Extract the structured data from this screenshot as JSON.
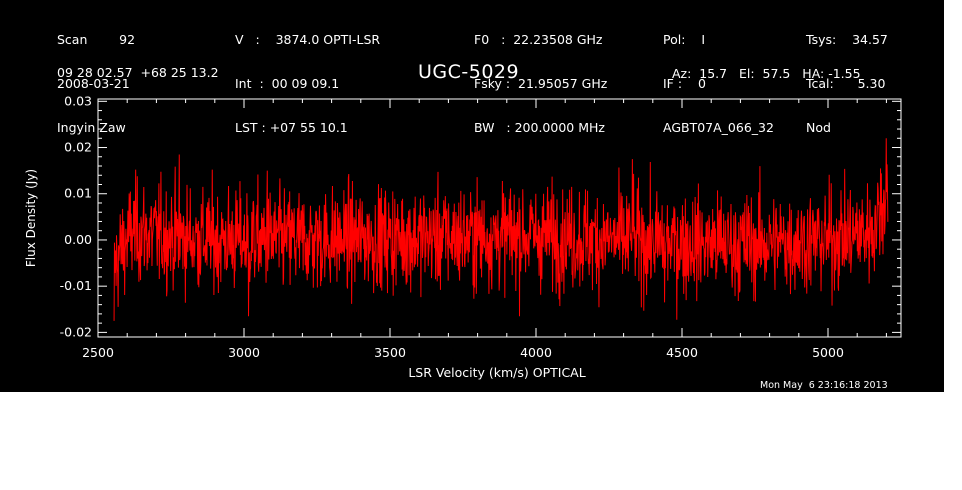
{
  "header": {
    "col1": [
      "Scan        92",
      "2008-03-21",
      "Ingyin Zaw"
    ],
    "col2": [
      "V   :    3874.0 OPTI-LSR",
      "Int  :  00 09 09.1",
      "LST : +07 55 10.1"
    ],
    "col3": [
      "F0   :  22.23508 GHz",
      "Fsky :  21.95057 GHz",
      "BW   : 200.0000 MHz"
    ],
    "col4": [
      "Pol:    I",
      "IF :    0",
      "AGBT07A_066_32"
    ],
    "col5": [
      "Tsys:    34.57",
      "Tcal:      5.30",
      "Nod"
    ]
  },
  "position": "09 28 02.57  +68 25 13.2",
  "source": "UGC-5029",
  "azel": "Az:  15.7   El:  57.5   HA: -1.55",
  "timestamp": "Mon May  6 23:16:18 2013",
  "colors": {
    "background": "#000000",
    "axes": "#ffffff",
    "trace": "#ff0000"
  },
  "chart_data": {
    "type": "line",
    "title": "UGC-5029",
    "xlabel": "LSR Velocity (km/s) OPTICAL",
    "ylabel": "Flux Density (Jy)",
    "xlim": [
      2500,
      5250
    ],
    "ylim": [
      -0.021,
      0.0305
    ],
    "xticks": [
      2500,
      3000,
      3500,
      4000,
      4500,
      5000
    ],
    "xtick_labels": [
      "2500",
      "3000",
      "3500",
      "4000",
      "4500",
      "5000"
    ],
    "yticks": [
      -0.02,
      -0.01,
      0.0,
      0.01,
      0.02,
      0.03
    ],
    "ytick_labels": [
      "-0.02",
      "-0.01",
      "0.00",
      "0.01",
      "0.02",
      "0.03"
    ],
    "grid": false,
    "series": [
      {
        "color": "#ff0000",
        "x_range": [
          2555,
          5205
        ],
        "n_channels": 1900,
        "noise_rms": 0.0055,
        "baseline": [
          [
            2555,
            -0.006
          ],
          [
            2580,
            -0.002
          ],
          [
            2620,
            0.002
          ],
          [
            2700,
            0.001
          ],
          [
            2900,
            0.0
          ],
          [
            3200,
            0.0
          ],
          [
            3600,
            0.0005
          ],
          [
            4000,
            0.001
          ],
          [
            4400,
            -0.0005
          ],
          [
            4700,
            -0.001
          ],
          [
            5000,
            0.0
          ],
          [
            5120,
            0.0015
          ],
          [
            5160,
            0.003
          ],
          [
            5190,
            0.008
          ],
          [
            5205,
            0.012
          ]
        ],
        "peaks": [
          [
            2555,
            -0.0175
          ],
          [
            2778,
            0.0185
          ],
          [
            3015,
            -0.0165
          ],
          [
            3080,
            0.015
          ],
          [
            4330,
            0.0175
          ],
          [
            4440,
            -0.0135
          ],
          [
            5180,
            0.0155
          ],
          [
            5200,
            0.022
          ]
        ]
      }
    ]
  }
}
